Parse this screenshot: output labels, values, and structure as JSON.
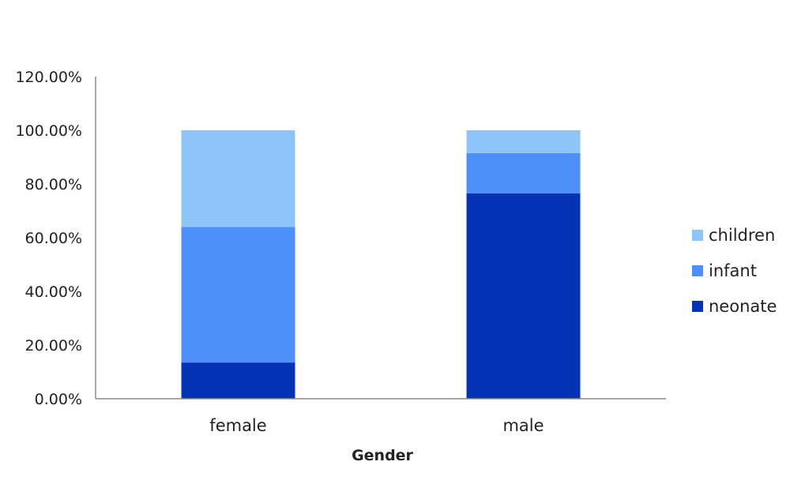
{
  "chart_data": {
    "type": "bar",
    "stacked": true,
    "categories": [
      "female",
      "male"
    ],
    "series": [
      {
        "name": "neonate",
        "values": [
          13.5,
          76.5
        ],
        "color": "#0433b5"
      },
      {
        "name": "infant",
        "values": [
          50.5,
          15.0
        ],
        "color": "#4d8ef8"
      },
      {
        "name": "children",
        "values": [
          36.0,
          8.5
        ],
        "color": "#8ec5f8"
      }
    ],
    "title": "",
    "xlabel": "Gender",
    "ylabel": "",
    "ylim": [
      0,
      120
    ],
    "yticks": [
      "0.00%",
      "20.00%",
      "40.00%",
      "60.00%",
      "80.00%",
      "100.00%",
      "120.00%"
    ],
    "grid": false,
    "legend_position": "right",
    "legend_order": [
      "children",
      "infant",
      "neonate"
    ]
  }
}
